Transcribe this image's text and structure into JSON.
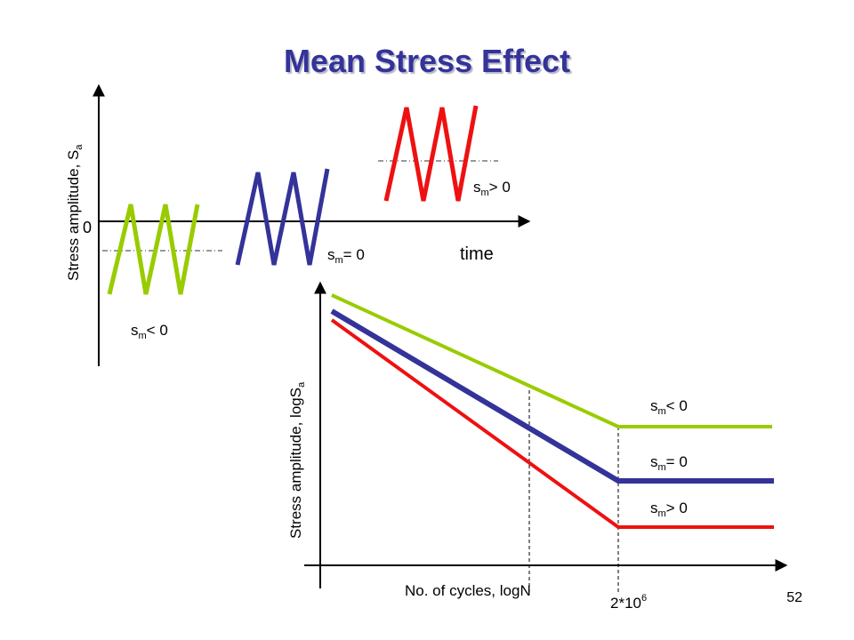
{
  "title": "Mean Stress Effect",
  "page_number": "52",
  "colors": {
    "title": "#333399",
    "sm_neg": "#99cc00",
    "sm_zero": "#333399",
    "sm_pos": "#ee1111",
    "axis": "#000000"
  },
  "top_plot": {
    "y_axis_label_main": "Stress amplitude, S",
    "y_axis_label_sub": "a",
    "x_axis_label": "time",
    "origin_label": "0",
    "waves": [
      {
        "id": "neg",
        "label_s": "s",
        "label_sub": "m",
        "label_rel": "< 0"
      },
      {
        "id": "zero",
        "label_s": "s",
        "label_sub": "m",
        "label_rel": "= 0"
      },
      {
        "id": "pos",
        "label_s": "s",
        "label_sub": "m",
        "label_rel": "> 0"
      }
    ]
  },
  "bottom_plot": {
    "y_axis_label_main": "Stress amplitude, logS",
    "y_axis_label_sub": "a",
    "x_axis_label": "No. of cycles, logN",
    "knee_label_main": "2*10",
    "knee_label_sup": "6",
    "curves": [
      {
        "id": "neg",
        "label_s": "s",
        "label_sub": "m",
        "label_rel": "< 0"
      },
      {
        "id": "zero",
        "label_s": "s",
        "label_sub": "m",
        "label_rel": "= 0"
      },
      {
        "id": "pos",
        "label_s": "s",
        "label_sub": "m",
        "label_rel": "> 0"
      }
    ]
  }
}
